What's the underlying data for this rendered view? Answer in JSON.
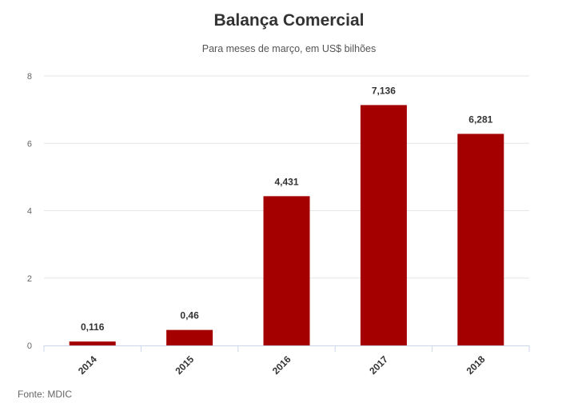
{
  "chart_data": {
    "type": "bar",
    "title": "Balança Comercial",
    "subtitle": "Para meses de março, em US$ bilhões",
    "categories": [
      "2014",
      "2015",
      "2016",
      "2017",
      "2018"
    ],
    "values": [
      0.116,
      0.46,
      4.431,
      7.136,
      6.281
    ],
    "data_labels": [
      "0,116",
      "0,46",
      "4,431",
      "7,136",
      "6,281"
    ],
    "yticks": [
      0,
      2,
      4,
      6,
      8
    ],
    "ylim": [
      0,
      8
    ],
    "grid": true,
    "legend": "none",
    "bar_color": "#a50000"
  },
  "source": "Fonte: MDIC"
}
